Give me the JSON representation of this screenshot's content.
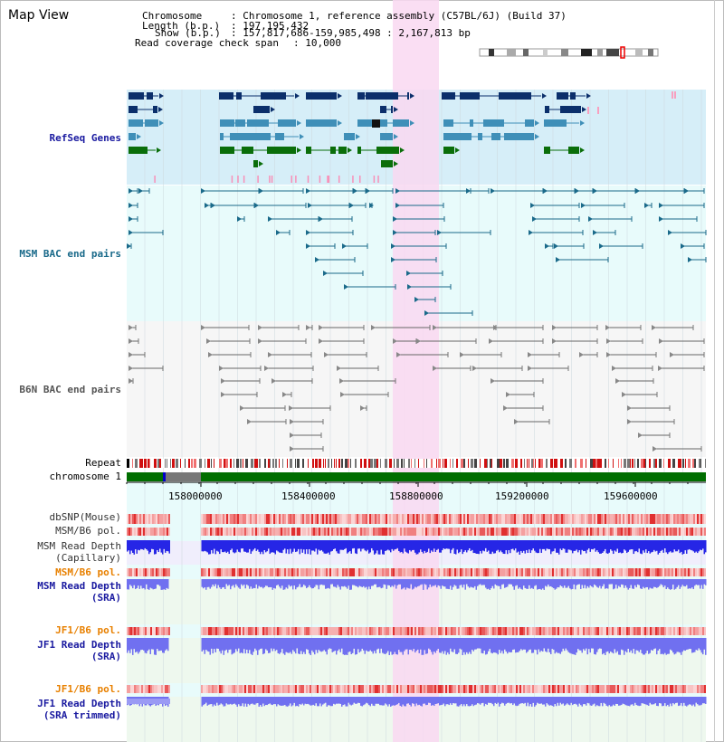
{
  "page": {
    "title": "Map View"
  },
  "info": {
    "chromosome_key": "Chromosome",
    "chromosome_val": ": Chromosome 1, reference assembly (C57BL/6J) (Build 37)",
    "length_key": "Length (b.p.)",
    "length_val": ": 197,195,432",
    "show_key": "Show (b.p.)",
    "show_val": ": 157,817,686-159,985,498 : 2,167,813 bp",
    "span_key": "Read coverage check span",
    "span_val": ": 10,000"
  },
  "tracks": {
    "refseq": "RefSeq Genes",
    "msm_bac": "MSM BAC end pairs",
    "b6n_bac": "B6N BAC end pairs",
    "repeat": "Repeat",
    "chromosome": "chromosome 1",
    "dbsnp": "dbSNP(Mouse)",
    "msm_b6_pol": "MSM/B6 pol.",
    "msm_depth_cap_1": "MSM Read Depth",
    "msm_depth_cap_2": "(Capillary)",
    "msm_b6_pol2": "MSM/B6 pol.",
    "msm_depth_sra_1": "MSM Read Depth",
    "msm_depth_sra_2": "(SRA)",
    "jf1_b6_pol": "JF1/B6 pol.",
    "jf1_depth_sra_1": "JF1 Read Depth",
    "jf1_depth_sra_2": "(SRA)",
    "jf1_b6_pol2": "JF1/B6 pol.",
    "jf1_depth_trim_1": "JF1 Read Depth",
    "jf1_depth_trim_2": "(SRA trimmed)"
  },
  "axis": {
    "ticks": [
      "158000000",
      "158400000",
      "158800000",
      "159200000",
      "159600000"
    ]
  },
  "colors": {
    "refseq_bg": "#d6eef8",
    "bac_bg": "#e8fbfb",
    "b6n_bg": "#f6f6f6",
    "highlight": "#f9d8f1",
    "chrom_green": "#006e00",
    "gene_dark": "#0b2f6b",
    "gene_mid": "#3f8fb8",
    "gene_green": "#0a6e0a",
    "msm_line": "#1a6a8a",
    "b6n_line": "#666666",
    "depth_blue": "#2626e6",
    "depth_light": "#7070f0"
  }
}
